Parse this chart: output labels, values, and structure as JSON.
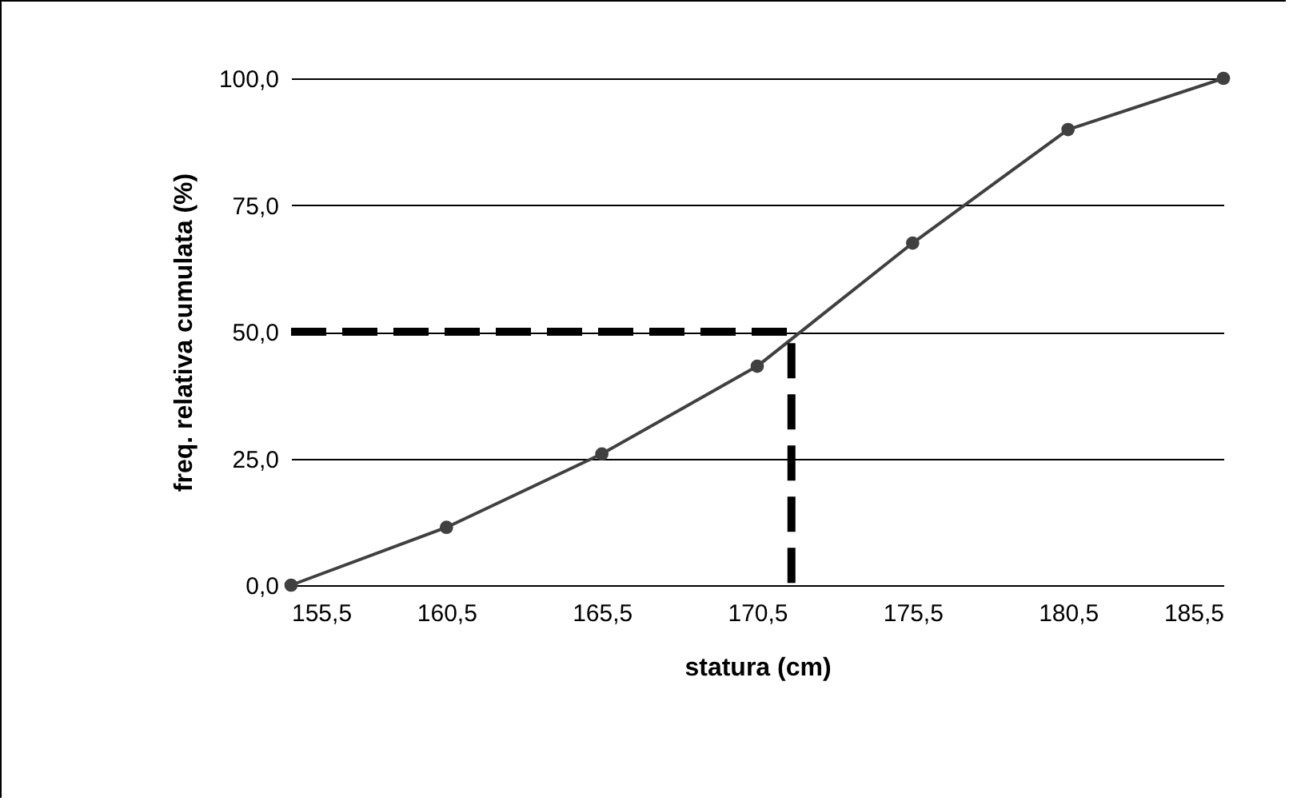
{
  "chart_data": {
    "type": "line",
    "xlabel": "statura (cm)",
    "ylabel": "freq. relativa cumulata (%)",
    "xlim": [
      155.5,
      185.5
    ],
    "ylim": [
      0,
      100
    ],
    "xticks": [
      {
        "value": 155.5,
        "label": "155,5"
      },
      {
        "value": 160.5,
        "label": "160,5"
      },
      {
        "value": 165.5,
        "label": "165,5"
      },
      {
        "value": 170.5,
        "label": "170,5"
      },
      {
        "value": 175.5,
        "label": "175,5"
      },
      {
        "value": 180.5,
        "label": "180,5"
      },
      {
        "value": 185.5,
        "label": "185,5"
      }
    ],
    "yticks": [
      {
        "value": 0,
        "label": "0,0"
      },
      {
        "value": 25,
        "label": "25,0"
      },
      {
        "value": 50,
        "label": "50,0"
      },
      {
        "value": 75,
        "label": "75,0"
      },
      {
        "value": 100,
        "label": "100,0"
      }
    ],
    "grid": "y",
    "marker": "circle",
    "line_style": "solid",
    "series": [
      {
        "color": "#404040",
        "x": [
          155.5,
          160.5,
          165.5,
          170.5,
          175.5,
          180.5,
          185.5
        ],
        "values": [
          0,
          11.4,
          25.9,
          43.2,
          67.5,
          89.9,
          100
        ]
      },
      {
        "color": "#000000",
        "x": [
          155.5,
          171.6,
          171.6
        ],
        "values": [
          50,
          50,
          0
        ],
        "marker": "none",
        "line_style": "dashed"
      }
    ]
  }
}
